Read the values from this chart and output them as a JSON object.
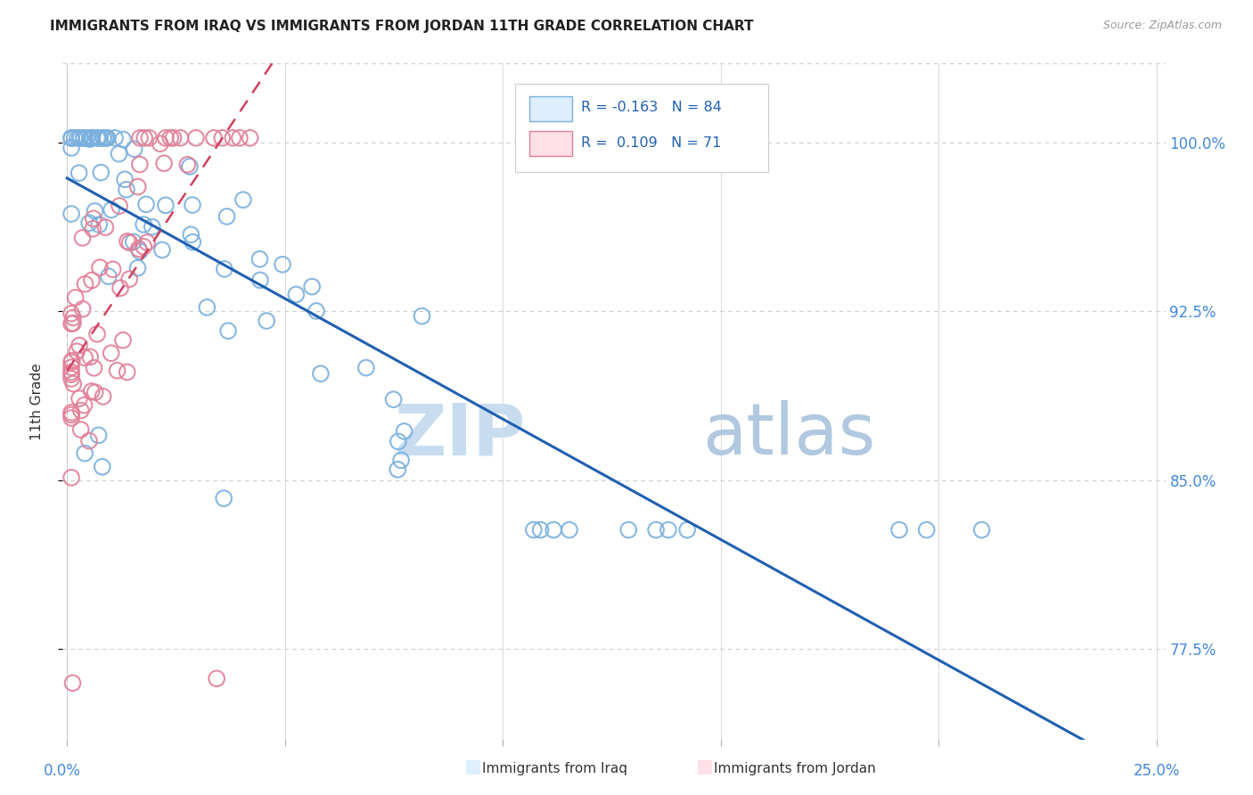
{
  "title": "IMMIGRANTS FROM IRAQ VS IMMIGRANTS FROM JORDAN 11TH GRADE CORRELATION CHART",
  "source": "Source: ZipAtlas.com",
  "ylabel": "11th Grade",
  "yticks": [
    0.775,
    0.85,
    0.925,
    1.0
  ],
  "ytick_labels": [
    "77.5%",
    "85.0%",
    "92.5%",
    "100.0%"
  ],
  "xlim": [
    0.0,
    0.25
  ],
  "ylim": [
    0.735,
    1.035
  ],
  "iraq_color": "#7ab0de",
  "jordan_color": "#e08098",
  "iraq_line_color": "#2060b0",
  "jordan_line_color": "#d04060",
  "legend_text_color": "#2060b0",
  "ytick_color": "#4488dd",
  "xtick_color": "#4488dd",
  "grid_color": "#cccccc",
  "watermark_zip_color": "#c8dcf0",
  "watermark_atlas_color": "#b0c8e0"
}
